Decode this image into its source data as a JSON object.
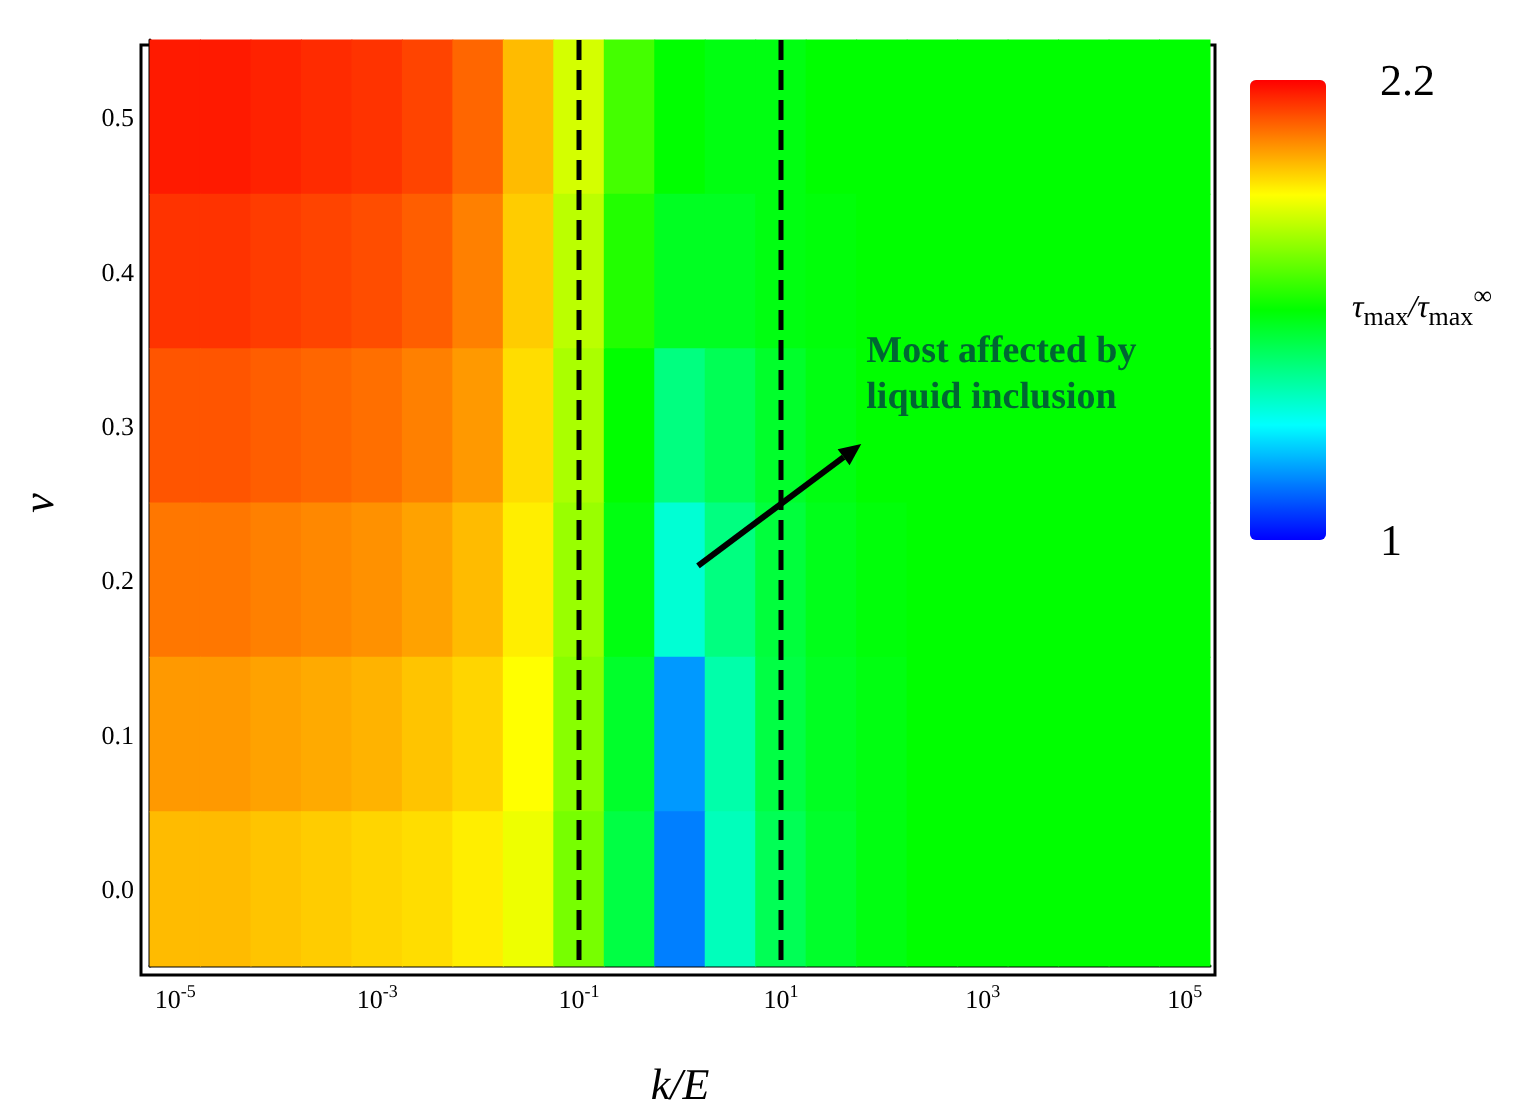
{
  "chart_data": {
    "type": "heatmap",
    "xlabel": "k/E",
    "ylabel": "ν",
    "clabel": "τ$_{max}$/τ$_{max}$$^{∞}$",
    "categories": [
      "10$^{-5}$",
      null,
      null,
      null,
      "10$^{-3}$",
      null,
      null,
      null,
      "10$^{-1}$",
      null,
      null,
      null,
      "10$^{1}$",
      null,
      null,
      null,
      "10$^{3}$",
      null,
      null,
      null,
      "10$^{5}$"
    ],
    "y_categories": [
      "0.5",
      "0.4",
      "0.3",
      "0.2",
      "0.1",
      "0.0"
    ],
    "cells": [
      [
        2.17,
        2.17,
        2.16,
        2.15,
        2.14,
        2.12,
        2.08,
        1.98,
        1.85,
        1.68,
        1.6,
        1.58,
        1.58,
        1.6,
        1.6,
        1.6,
        1.6,
        1.6,
        1.6,
        1.6,
        1.6
      ],
      [
        2.14,
        2.14,
        2.13,
        2.12,
        2.11,
        2.09,
        2.05,
        1.96,
        1.82,
        1.64,
        1.56,
        1.56,
        1.58,
        1.59,
        1.6,
        1.6,
        1.6,
        1.6,
        1.6,
        1.6,
        1.6
      ],
      [
        2.1,
        2.1,
        2.09,
        2.08,
        2.07,
        2.05,
        2.02,
        1.94,
        1.8,
        1.6,
        1.45,
        1.5,
        1.55,
        1.58,
        1.6,
        1.6,
        1.6,
        1.6,
        1.6,
        1.6,
        1.6
      ],
      [
        2.06,
        2.06,
        2.05,
        2.04,
        2.03,
        2.01,
        1.98,
        1.92,
        1.78,
        1.58,
        1.35,
        1.45,
        1.53,
        1.57,
        1.59,
        1.6,
        1.6,
        1.6,
        1.6,
        1.6,
        1.6
      ],
      [
        2.02,
        2.02,
        2.01,
        2.0,
        1.99,
        1.97,
        1.95,
        1.9,
        1.76,
        1.55,
        1.18,
        1.4,
        1.52,
        1.56,
        1.58,
        1.6,
        1.6,
        1.6,
        1.6,
        1.6,
        1.6
      ],
      [
        1.98,
        1.98,
        1.97,
        1.96,
        1.95,
        1.94,
        1.92,
        1.88,
        1.74,
        1.52,
        1.15,
        1.38,
        1.5,
        1.55,
        1.58,
        1.6,
        1.6,
        1.6,
        1.6,
        1.6,
        1.6
      ]
    ],
    "colors": [
      "#0000ff",
      "#00ffff",
      "#00ff00",
      "#ffff00",
      "#ff0000"
    ],
    "clim": [
      1,
      2.2
    ],
    "cticks": [
      2.2,
      1
    ],
    "ref_lines": [
      {
        "axis": "x",
        "value": "10$^{-1}$",
        "color": "#000000",
        "line_style": "dashed"
      },
      {
        "axis": "x",
        "value": "10$^{1}$",
        "color": "#000000",
        "line_style": "dashed"
      }
    ],
    "annotations": [
      "Most affected by liquid inclusion"
    ]
  }
}
